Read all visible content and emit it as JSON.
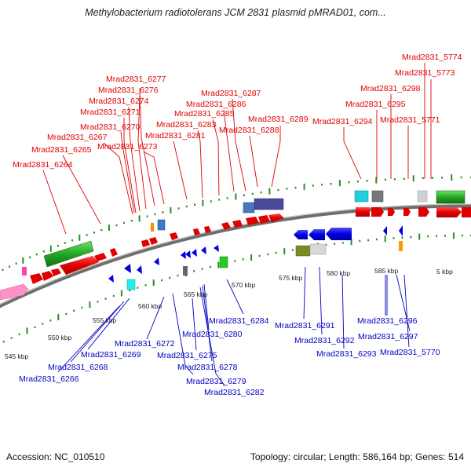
{
  "header": {
    "title": "Methylobacterium radiotolerans JCM 2831 plasmid pMRAD01, com..."
  },
  "footer": {
    "accession": "Accession: NC_010510",
    "topology": "Topology: circular; Length: 586,164 bp; Genes: 514"
  },
  "colors": {
    "forward_labels": "#e00000",
    "reverse_labels": "#0000c0",
    "backbone": "#808080",
    "ticks": "#2a8a2a"
  },
  "kbp_labels": [
    "545 kbp",
    "550 kbp",
    "555 kbp",
    "560 kbp",
    "565 kbp",
    "570 kbp",
    "575 kbp",
    "580 kbp",
    "585 kbp",
    "5 kbp"
  ],
  "forward_genes": [
    "Mrad2831_5774",
    "Mrad2831_5773",
    "Mrad2831_6298",
    "Mrad2831_6295",
    "Mrad2831_5771",
    "Mrad2831_6294",
    "Mrad2831_6289",
    "Mrad2831_6288",
    "Mrad2831_6287",
    "Mrad2831_6286",
    "Mrad2831_6285",
    "Mrad2831_6283",
    "Mrad2831_6281",
    "Mrad2831_6277",
    "Mrad2831_6276",
    "Mrad2831_6274",
    "Mrad2831_6271",
    "Mrad2831_6270",
    "Mrad2831_6267",
    "Mrad2831_6273",
    "Mrad2831_6265",
    "Mrad2831_6264"
  ],
  "reverse_genes": [
    "Mrad2831_6284",
    "Mrad2831_6291",
    "Mrad2831_6296",
    "Mrad2831_6280",
    "Mrad2831_6292",
    "Mrad2831_6297",
    "Mrad2831_6272",
    "Mrad2831_6293",
    "Mrad2831_5770",
    "Mrad2831_6269",
    "Mrad2831_6275",
    "Mrad2831_6268",
    "Mrad2831_6278",
    "Mrad2831_6266",
    "Mrad2831_6279",
    "Mrad2831_6282"
  ]
}
